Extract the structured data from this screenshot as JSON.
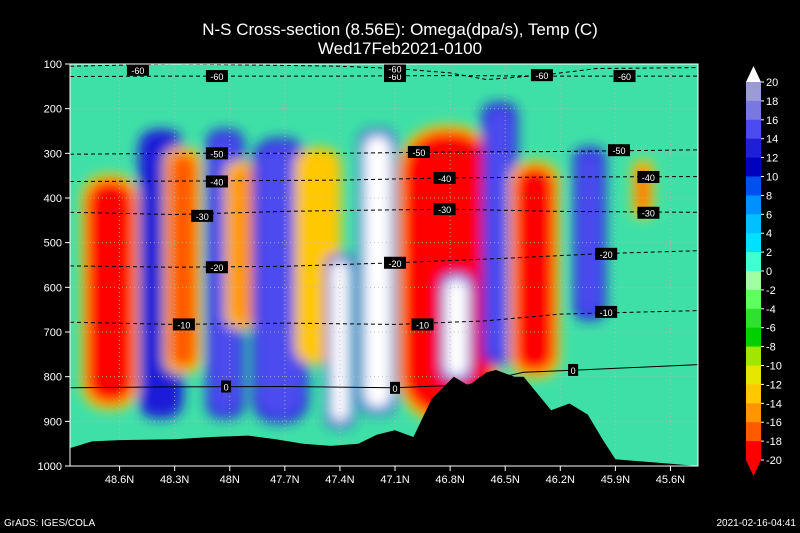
{
  "chart_data": {
    "type": "heatmap",
    "title": "N-S Cross-section (8.56E): Omega(dpa/s), Temp (C)",
    "subtitle": "Wed17Feb2021-0100",
    "x_tick_labels": [
      "48.6N",
      "48.3N",
      "48N",
      "47.7N",
      "47.4N",
      "47.1N",
      "46.8N",
      "46.5N",
      "46.2N",
      "45.9N",
      "45.6N"
    ],
    "x_tick_values": [
      48.6,
      48.3,
      48.0,
      47.7,
      47.4,
      47.1,
      46.8,
      46.5,
      46.2,
      45.9,
      45.6
    ],
    "y_tick_labels": [
      "100",
      "200",
      "300",
      "400",
      "500",
      "600",
      "700",
      "800",
      "900",
      "1000"
    ],
    "y_tick_values": [
      100,
      200,
      300,
      400,
      500,
      600,
      700,
      800,
      900,
      1000
    ],
    "xlim": [
      48.87,
      45.45
    ],
    "ylim": [
      1000,
      100
    ],
    "grid": true,
    "colorbar": {
      "labels": [
        "20",
        "18",
        "16",
        "14",
        "12",
        "10",
        "8",
        "6",
        "4",
        "2",
        "0",
        "-2",
        "-4",
        "-6",
        "-8",
        "-10",
        "-12",
        "-14",
        "-16",
        "-18",
        "-20"
      ],
      "colors": [
        "#9b9bd8",
        "#7878e0",
        "#4b4bf0",
        "#1f1fd8",
        "#0000c0",
        "#0050f0",
        "#0090ff",
        "#00c0ff",
        "#00e0ff",
        "#40ffd0",
        "#a0ffa0",
        "#60ff60",
        "#30e030",
        "#00d000",
        "#a0e600",
        "#e6e600",
        "#ffc800",
        "#ff9600",
        "#ff5a00",
        "#ff0000"
      ]
    },
    "temperature_contour_labels": [
      {
        "text": "-60",
        "x": 48.07,
        "p": 127
      },
      {
        "text": "-60",
        "x": 47.1,
        "p": 127
      },
      {
        "text": "-60",
        "x": 45.85,
        "p": 127
      },
      {
        "text": "-60",
        "x": 48.5,
        "p": 113
      },
      {
        "text": "-60",
        "x": 47.1,
        "p": 110
      },
      {
        "text": "-60",
        "x": 46.3,
        "p": 125
      },
      {
        "text": "-50",
        "x": 48.07,
        "p": 300
      },
      {
        "text": "-50",
        "x": 46.97,
        "p": 297
      },
      {
        "text": "-50",
        "x": 45.88,
        "p": 293
      },
      {
        "text": "-40",
        "x": 48.07,
        "p": 363
      },
      {
        "text": "-40",
        "x": 46.83,
        "p": 355
      },
      {
        "text": "-40",
        "x": 45.72,
        "p": 353
      },
      {
        "text": "-30",
        "x": 48.15,
        "p": 440
      },
      {
        "text": "-30",
        "x": 46.83,
        "p": 425
      },
      {
        "text": "-30",
        "x": 45.72,
        "p": 433
      },
      {
        "text": "-20",
        "x": 48.07,
        "p": 555
      },
      {
        "text": "-20",
        "x": 47.1,
        "p": 545
      },
      {
        "text": "-20",
        "x": 45.95,
        "p": 525
      },
      {
        "text": "-10",
        "x": 48.25,
        "p": 683
      },
      {
        "text": "-10",
        "x": 46.95,
        "p": 683
      },
      {
        "text": "-10",
        "x": 45.95,
        "p": 655
      },
      {
        "text": "0",
        "x": 48.02,
        "p": 822
      },
      {
        "text": "0",
        "x": 47.1,
        "p": 825
      },
      {
        "text": "0",
        "x": 46.13,
        "p": 785
      }
    ],
    "temperature_contours": [
      {
        "level": -60,
        "points": [
          [
            48.87,
            105
          ],
          [
            48.3,
            100
          ],
          [
            47.4,
            105
          ],
          [
            47.1,
            110
          ],
          [
            46.8,
            120
          ],
          [
            46.6,
            135
          ],
          [
            46.3,
            125
          ],
          [
            46.0,
            110
          ],
          [
            45.45,
            108
          ]
        ]
      },
      {
        "level": -60,
        "points": [
          [
            48.87,
            128
          ],
          [
            48.3,
            127
          ],
          [
            47.4,
            127
          ],
          [
            46.8,
            126
          ],
          [
            46.2,
            127
          ],
          [
            45.45,
            127
          ]
        ]
      },
      {
        "level": -50,
        "points": [
          [
            48.87,
            302
          ],
          [
            48.2,
            300
          ],
          [
            47.4,
            300
          ],
          [
            46.8,
            297
          ],
          [
            46.2,
            296
          ],
          [
            45.45,
            292
          ]
        ]
      },
      {
        "level": -40,
        "points": [
          [
            48.87,
            363
          ],
          [
            48.2,
            362
          ],
          [
            47.4,
            360
          ],
          [
            46.8,
            355
          ],
          [
            46.2,
            353
          ],
          [
            45.45,
            352
          ]
        ]
      },
      {
        "level": -30,
        "points": [
          [
            48.87,
            432
          ],
          [
            48.3,
            437
          ],
          [
            47.7,
            430
          ],
          [
            47.4,
            428
          ],
          [
            46.8,
            425
          ],
          [
            46.2,
            430
          ],
          [
            45.45,
            432
          ]
        ]
      },
      {
        "level": -20,
        "points": [
          [
            48.87,
            552
          ],
          [
            48.3,
            555
          ],
          [
            47.7,
            553
          ],
          [
            47.1,
            545
          ],
          [
            46.5,
            535
          ],
          [
            46.0,
            525
          ],
          [
            45.45,
            518
          ]
        ]
      },
      {
        "level": -10,
        "points": [
          [
            48.87,
            678
          ],
          [
            48.3,
            683
          ],
          [
            47.7,
            680
          ],
          [
            47.1,
            683
          ],
          [
            46.6,
            675
          ],
          [
            46.2,
            660
          ],
          [
            45.45,
            652
          ]
        ]
      },
      {
        "level": 0,
        "points": [
          [
            48.87,
            825
          ],
          [
            48.3,
            823
          ],
          [
            47.7,
            822
          ],
          [
            47.1,
            825
          ],
          [
            46.7,
            818
          ],
          [
            46.4,
            790
          ],
          [
            46.1,
            785
          ],
          [
            45.45,
            773
          ]
        ]
      }
    ],
    "terrain_pressure": [
      [
        48.87,
        960
      ],
      [
        48.75,
        945
      ],
      [
        48.6,
        942
      ],
      [
        48.3,
        940
      ],
      [
        48.1,
        935
      ],
      [
        47.9,
        932
      ],
      [
        47.75,
        940
      ],
      [
        47.6,
        950
      ],
      [
        47.45,
        955
      ],
      [
        47.3,
        950
      ],
      [
        47.2,
        930
      ],
      [
        47.1,
        920
      ],
      [
        47.0,
        935
      ],
      [
        46.9,
        850
      ],
      [
        46.78,
        800
      ],
      [
        46.7,
        820
      ],
      [
        46.6,
        790
      ],
      [
        46.55,
        785
      ],
      [
        46.45,
        800
      ],
      [
        46.4,
        800
      ],
      [
        46.3,
        850
      ],
      [
        46.25,
        875
      ],
      [
        46.15,
        860
      ],
      [
        46.05,
        885
      ],
      [
        45.97,
        940
      ],
      [
        45.9,
        985
      ],
      [
        45.75,
        990
      ],
      [
        45.6,
        995
      ],
      [
        45.45,
        1000
      ]
    ],
    "omega_features": [
      {
        "x0": 48.78,
        "x1": 48.52,
        "p0": 360,
        "p1": 860,
        "value": -20
      },
      {
        "x0": 48.47,
        "x1": 48.28,
        "p0": 260,
        "p1": 880,
        "value": 12
      },
      {
        "x0": 48.33,
        "x1": 48.18,
        "p0": 300,
        "p1": 780,
        "value": -18
      },
      {
        "x0": 48.1,
        "x1": 47.95,
        "p0": 260,
        "p1": 880,
        "value": 14
      },
      {
        "x0": 48.0,
        "x1": 47.85,
        "p0": 330,
        "p1": 680,
        "value": -16
      },
      {
        "x0": 47.85,
        "x1": 47.6,
        "p0": 280,
        "p1": 890,
        "value": 14
      },
      {
        "x0": 47.62,
        "x1": 47.42,
        "p0": 300,
        "p1": 760,
        "value": -14
      },
      {
        "x0": 47.45,
        "x1": 47.35,
        "p0": 540,
        "p1": 900,
        "value": 20
      },
      {
        "x0": 47.27,
        "x1": 47.12,
        "p0": 260,
        "p1": 870,
        "value": 20
      },
      {
        "x0": 47.06,
        "x1": 46.56,
        "p0": 250,
        "p1": 890,
        "value": -20
      },
      {
        "x0": 46.83,
        "x1": 46.7,
        "p0": 580,
        "p1": 800,
        "value": 20
      },
      {
        "x0": 46.6,
        "x1": 46.46,
        "p0": 200,
        "p1": 760,
        "value": 14
      },
      {
        "x0": 46.45,
        "x1": 46.23,
        "p0": 330,
        "p1": 790,
        "value": -20
      },
      {
        "x0": 46.1,
        "x1": 45.98,
        "p0": 300,
        "p1": 660,
        "value": 14
      },
      {
        "x0": 45.78,
        "x1": 45.72,
        "p0": 330,
        "p1": 430,
        "value": -18
      }
    ]
  },
  "footer": {
    "left": "GrADS: IGES/COLA",
    "right": "2021-02-16-04:41"
  }
}
